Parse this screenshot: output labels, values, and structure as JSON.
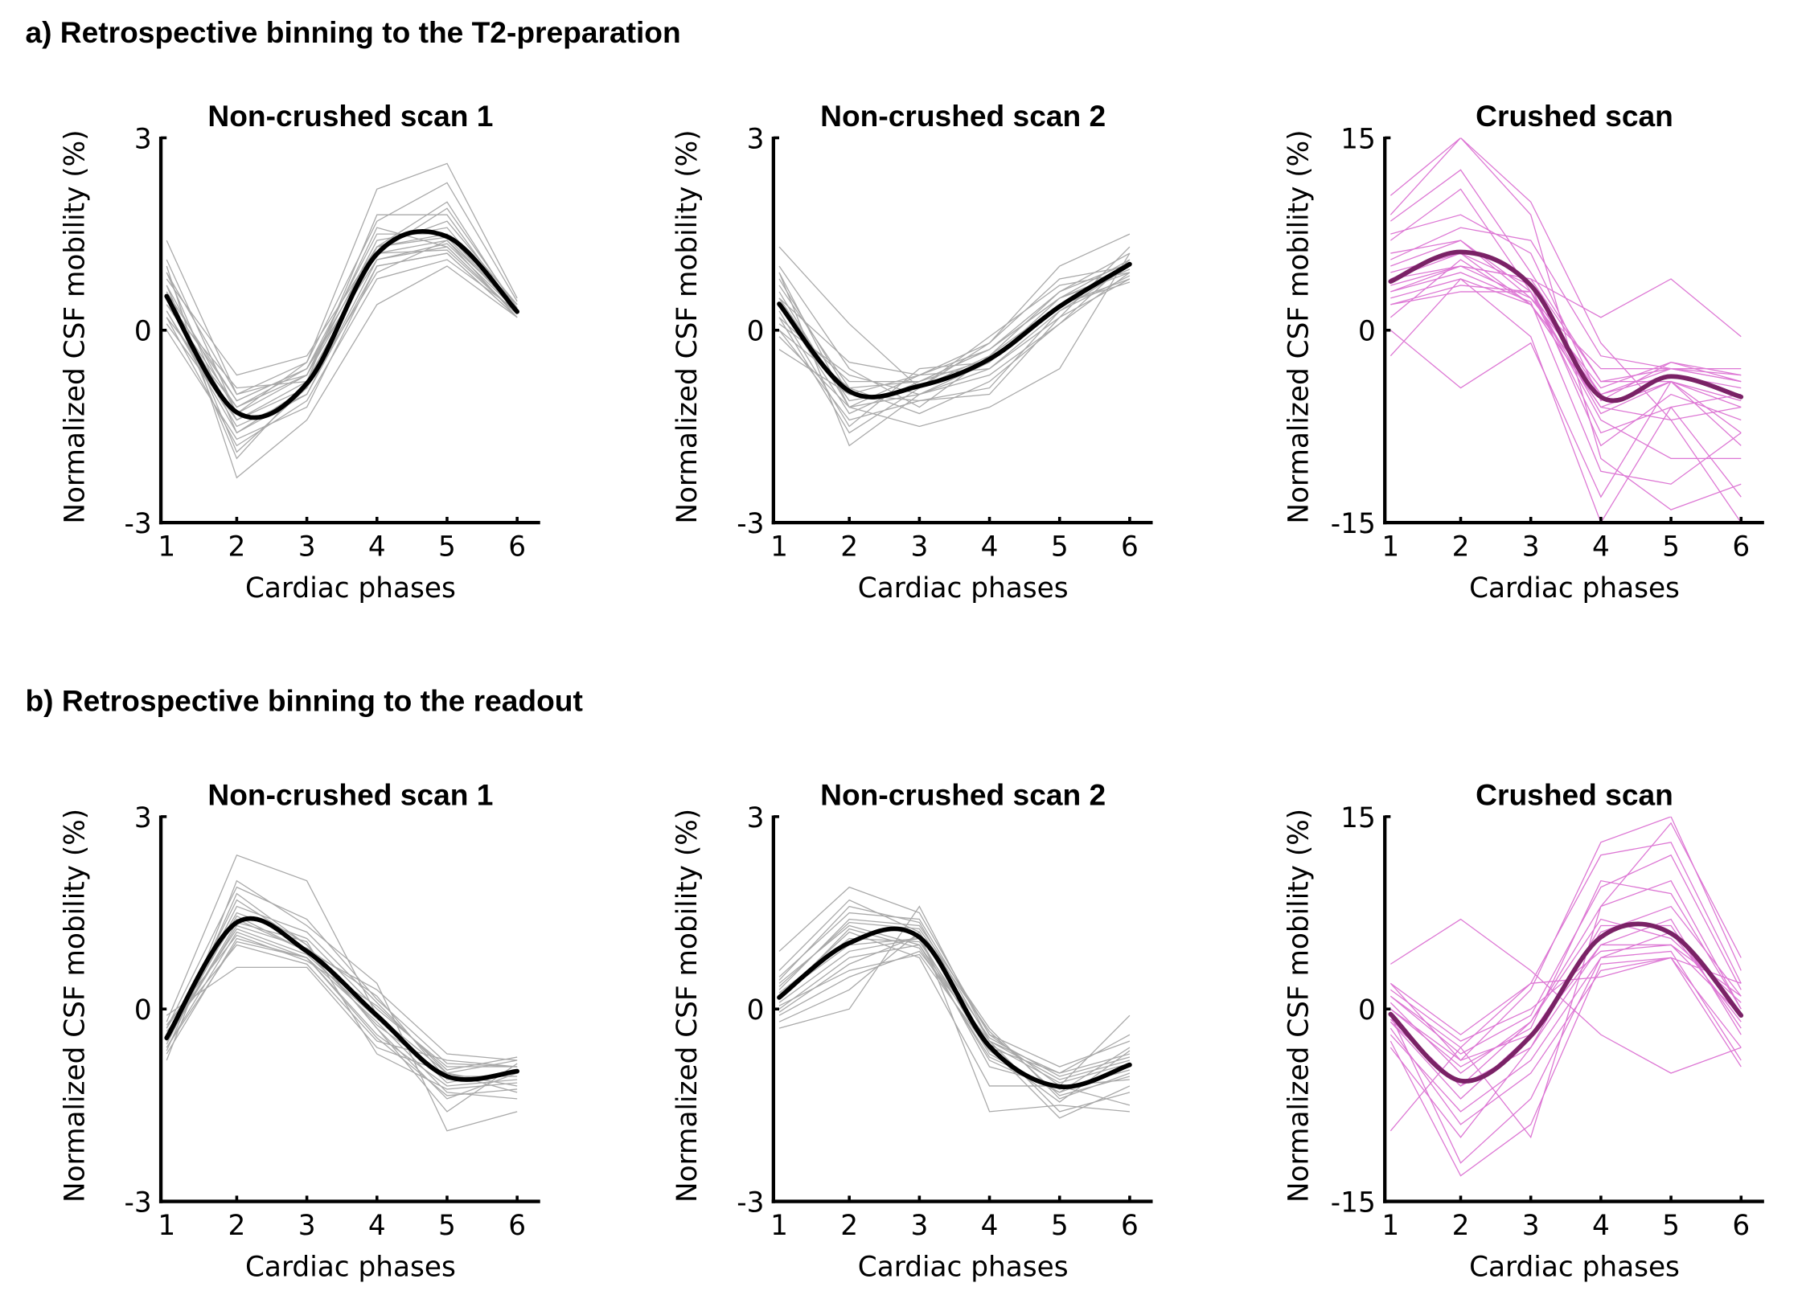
{
  "sections": [
    {
      "title": "a) Retrospective binning to the T2-preparation"
    },
    {
      "title": "b) Retrospective binning to the readout"
    }
  ],
  "colors": {
    "subject_gray": "#a9a9a9",
    "mean_black": "#000000",
    "subject_pink": "#dd77d4",
    "mean_purple": "#7a2266"
  },
  "chart_data": [
    {
      "type": "line",
      "section": 0,
      "title": "Non-crushed scan 1",
      "xlabel": "Cardiac phases",
      "ylabel": "Normalized CSF mobility (%)",
      "x": [
        1,
        2,
        3,
        4,
        5,
        6
      ],
      "xticks": [
        "1",
        "2",
        "3",
        "4",
        "5",
        "6"
      ],
      "ylim": [
        -3,
        3
      ],
      "yticks": [
        "-3",
        "0",
        "3"
      ],
      "grid": false,
      "style": "gray",
      "mean": [
        0.53,
        -1.28,
        -0.83,
        1.19,
        1.46,
        0.29
      ],
      "subjects": [
        [
          1.4,
          -1.0,
          -0.5,
          2.2,
          2.6,
          0.5
        ],
        [
          1.0,
          -2.3,
          -1.4,
          0.4,
          1.0,
          0.2
        ],
        [
          0.9,
          -1.6,
          -0.9,
          1.3,
          2.0,
          0.3
        ],
        [
          0.7,
          -1.3,
          -0.7,
          1.2,
          1.4,
          0.35
        ],
        [
          0.5,
          -1.1,
          -0.6,
          1.1,
          1.3,
          0.25
        ],
        [
          0.3,
          -1.5,
          -1.0,
          1.0,
          1.2,
          0.2
        ],
        [
          0.6,
          -2.0,
          -0.8,
          1.8,
          1.8,
          0.3
        ],
        [
          0.2,
          -1.8,
          -1.1,
          0.8,
          1.1,
          0.3
        ],
        [
          0.1,
          -1.4,
          -0.9,
          1.3,
          1.5,
          0.4
        ],
        [
          0.8,
          -0.7,
          -0.4,
          1.3,
          1.7,
          0.4
        ],
        [
          0.4,
          -1.2,
          -0.7,
          1.4,
          1.6,
          0.3
        ],
        [
          0.0,
          -1.7,
          -1.2,
          1.0,
          1.2,
          0.2
        ],
        [
          0.6,
          -1.1,
          -0.6,
          1.5,
          1.5,
          0.3
        ],
        [
          0.5,
          -1.4,
          -0.8,
          1.2,
          1.9,
          0.35
        ],
        [
          0.9,
          -1.0,
          -0.7,
          1.6,
          1.3,
          0.25
        ],
        [
          0.3,
          -1.6,
          -1.0,
          1.1,
          1.35,
          0.3
        ],
        [
          0.7,
          -1.9,
          -0.9,
          0.9,
          1.4,
          0.2
        ],
        [
          0.2,
          -1.2,
          -0.6,
          1.3,
          1.45,
          0.3
        ],
        [
          1.1,
          -1.3,
          -0.5,
          1.7,
          2.3,
          0.45
        ],
        [
          0.4,
          -0.9,
          -0.8,
          1.2,
          1.25,
          0.25
        ]
      ]
    },
    {
      "type": "line",
      "section": 0,
      "title": "Non-crushed scan 2",
      "xlabel": "Cardiac phases",
      "ylabel": "Normalized CSF mobility (%)",
      "x": [
        1,
        2,
        3,
        4,
        5,
        6
      ],
      "xticks": [
        "1",
        "2",
        "3",
        "4",
        "5",
        "6"
      ],
      "ylim": [
        -3,
        3
      ],
      "yticks": [
        "-3",
        "0",
        "3"
      ],
      "grid": false,
      "style": "gray",
      "mean": [
        0.41,
        -0.95,
        -0.87,
        -0.45,
        0.37,
        1.03
      ],
      "subjects": [
        [
          1.3,
          0.1,
          -0.9,
          -0.2,
          1.0,
          1.5
        ],
        [
          0.9,
          -1.8,
          -1.0,
          -0.5,
          0.5,
          1.1
        ],
        [
          0.6,
          -1.2,
          -1.5,
          -1.2,
          -0.6,
          1.2
        ],
        [
          0.2,
          -0.8,
          -0.8,
          -0.3,
          0.5,
          0.9
        ],
        [
          0.0,
          -1.4,
          -1.1,
          -0.9,
          0.3,
          1.0
        ],
        [
          -0.3,
          -1.0,
          -0.7,
          -0.6,
          0.2,
          0.8
        ],
        [
          1.0,
          -0.6,
          -1.2,
          -0.4,
          0.6,
          1.2
        ],
        [
          0.5,
          -1.1,
          -0.9,
          -0.1,
          0.7,
          0.9
        ],
        [
          0.3,
          -1.5,
          -0.6,
          -0.5,
          0.4,
          0.8
        ],
        [
          0.7,
          -0.9,
          -1.3,
          -0.8,
          0.1,
          1.1
        ],
        [
          0.4,
          -1.3,
          -0.8,
          -0.3,
          0.5,
          0.95
        ],
        [
          0.1,
          -0.7,
          -1.0,
          -0.6,
          0.3,
          0.85
        ],
        [
          -0.1,
          -1.2,
          -0.7,
          -0.2,
          0.8,
          1.0
        ],
        [
          0.8,
          -1.0,
          -1.1,
          -1.0,
          0.2,
          1.3
        ],
        [
          0.2,
          -1.6,
          -0.9,
          -0.4,
          0.4,
          0.75
        ],
        [
          0.5,
          -0.5,
          -0.7,
          -0.3,
          0.6,
          1.05
        ],
        [
          0.9,
          -1.2,
          -1.0,
          -0.7,
          0.1,
          0.9
        ],
        [
          0.0,
          -0.9,
          -0.8,
          -0.45,
          0.35,
          1.0
        ]
      ]
    },
    {
      "type": "line",
      "section": 0,
      "title": "Crushed scan",
      "xlabel": "Cardiac phases",
      "ylabel": "Normalized CSF mobility (%)",
      "x": [
        1,
        2,
        3,
        4,
        5,
        6
      ],
      "xticks": [
        "1",
        "2",
        "3",
        "4",
        "5",
        "6"
      ],
      "ylim": [
        -15,
        15
      ],
      "yticks": [
        "-15",
        "0",
        "15"
      ],
      "grid": false,
      "style": "pink",
      "mean": [
        3.8,
        6.1,
        3.5,
        -5.2,
        -3.6,
        -5.2
      ],
      "subjects": [
        [
          10.5,
          15,
          10,
          -1,
          -7,
          -15
        ],
        [
          8.5,
          12.5,
          4.5,
          -4,
          -4,
          -8
        ],
        [
          7,
          11,
          3,
          -8,
          -6,
          -5
        ],
        [
          5.5,
          8,
          7,
          -2,
          -3,
          -4
        ],
        [
          4,
          6,
          2,
          -5,
          -3.5,
          -4.5
        ],
        [
          3,
          5,
          2.5,
          -4.5,
          -2.5,
          -3.5
        ],
        [
          2.5,
          4,
          2,
          -6,
          -4,
          -6
        ],
        [
          2,
          3,
          3,
          -5,
          -3,
          -3
        ],
        [
          6,
          7,
          3,
          -7,
          -10,
          -10
        ],
        [
          3.5,
          5,
          4,
          1,
          4,
          -0.5
        ],
        [
          0,
          -4.5,
          -1,
          -13,
          -4,
          -9
        ],
        [
          -2,
          4,
          -0.5,
          -15,
          -6,
          -13
        ],
        [
          4.5,
          6,
          3.5,
          -9,
          -5,
          -7
        ],
        [
          1,
          5.5,
          2,
          -6,
          -7,
          -6
        ],
        [
          5,
          7,
          2.5,
          -3,
          -3,
          -4
        ],
        [
          3,
          4.5,
          2.2,
          -11,
          -12,
          -8
        ],
        [
          7.5,
          9,
          6,
          -5.5,
          -2.5,
          -4
        ],
        [
          2,
          3.5,
          3,
          -6.5,
          -4,
          -5.5
        ],
        [
          9,
          15,
          9,
          -10,
          -14,
          -12
        ],
        [
          4,
          5,
          4,
          -4,
          -3,
          -3.5
        ]
      ]
    },
    {
      "type": "line",
      "section": 1,
      "title": "Non-crushed scan 1",
      "xlabel": "Cardiac phases",
      "ylabel": "Normalized CSF mobility (%)",
      "x": [
        1,
        2,
        3,
        4,
        5,
        6
      ],
      "xticks": [
        "1",
        "2",
        "3",
        "4",
        "5",
        "6"
      ],
      "ylim": [
        -3,
        3
      ],
      "yticks": [
        "-3",
        "0",
        "3"
      ],
      "grid": false,
      "style": "gray",
      "mean": [
        -0.45,
        1.35,
        0.9,
        -0.1,
        -1.05,
        -0.97
      ],
      "subjects": [
        [
          -0.2,
          2.4,
          2.0,
          -0.1,
          -1.0,
          -1.3
        ],
        [
          -0.8,
          2.0,
          1.3,
          0.4,
          -1.9,
          -1.6
        ],
        [
          -0.5,
          1.7,
          1.0,
          -0.3,
          -1.4,
          -1.0
        ],
        [
          -0.3,
          1.4,
          0.9,
          0.3,
          -0.7,
          -0.8
        ],
        [
          -0.6,
          1.2,
          0.8,
          -0.4,
          -1.2,
          -1.1
        ],
        [
          -0.4,
          1.5,
          1.1,
          0.0,
          -0.9,
          -0.9
        ],
        [
          -0.1,
          0.65,
          0.65,
          -0.6,
          -1.0,
          -0.8
        ],
        [
          -0.7,
          1.1,
          0.8,
          -0.2,
          -1.3,
          -1.4
        ],
        [
          -0.5,
          1.3,
          0.95,
          0.2,
          -1.1,
          -1.0
        ],
        [
          -0.35,
          1.0,
          0.7,
          -0.5,
          -0.8,
          -0.9
        ],
        [
          -0.55,
          1.6,
          1.2,
          0.1,
          -1.0,
          -1.2
        ],
        [
          -0.4,
          1.25,
          0.85,
          -0.15,
          -1.15,
          -0.95
        ],
        [
          -0.65,
          1.8,
          1.0,
          -0.3,
          -1.6,
          -0.85
        ],
        [
          -0.25,
          1.15,
          0.75,
          0.05,
          -0.95,
          -0.75
        ],
        [
          -0.45,
          1.45,
          0.9,
          -0.25,
          -1.05,
          -1.05
        ],
        [
          -0.5,
          1.35,
          1.05,
          -0.7,
          -1.25,
          -1.15
        ],
        [
          -0.3,
          1.9,
          1.4,
          0.15,
          -0.85,
          -0.9
        ],
        [
          -0.6,
          1.05,
          0.8,
          -0.45,
          -1.35,
          -1.25
        ]
      ]
    },
    {
      "type": "line",
      "section": 1,
      "title": "Non-crushed scan 2",
      "xlabel": "Cardiac phases",
      "ylabel": "Normalized CSF mobility (%)",
      "x": [
        1,
        2,
        3,
        4,
        5,
        6
      ],
      "xticks": [
        "1",
        "2",
        "3",
        "4",
        "5",
        "6"
      ],
      "ylim": [
        -3,
        3
      ],
      "yticks": [
        "-3",
        "0",
        "3"
      ],
      "grid": false,
      "style": "gray",
      "mean": [
        0.18,
        1.03,
        1.12,
        -0.58,
        -1.21,
        -0.87
      ],
      "subjects": [
        [
          0.9,
          1.9,
          1.5,
          -0.4,
          -1.2,
          -0.1
        ],
        [
          0.6,
          1.7,
          1.2,
          -1.6,
          -1.5,
          -1.6
        ],
        [
          -0.3,
          0.0,
          1.6,
          -0.5,
          -1.6,
          -1.3
        ],
        [
          0.4,
          1.3,
          1.0,
          -0.6,
          -1.0,
          -0.7
        ],
        [
          0.1,
          0.9,
          1.1,
          -0.7,
          -1.3,
          -0.9
        ],
        [
          -0.1,
          0.5,
          0.9,
          -0.5,
          -1.1,
          -0.8
        ],
        [
          0.3,
          1.4,
          1.3,
          -0.3,
          -1.4,
          -1.0
        ],
        [
          0.2,
          1.2,
          0.8,
          -1.2,
          -1.2,
          -1.1
        ],
        [
          0.0,
          0.8,
          1.0,
          -0.8,
          -1.3,
          -0.6
        ],
        [
          -0.2,
          0.3,
          1.2,
          -0.6,
          -1.7,
          -1.2
        ],
        [
          0.5,
          1.5,
          1.4,
          -0.4,
          -0.9,
          -0.5
        ],
        [
          0.25,
          1.1,
          1.05,
          -0.55,
          -1.15,
          -0.85
        ],
        [
          0.15,
          1.25,
          0.95,
          -0.75,
          -1.25,
          -0.95
        ],
        [
          -0.05,
          0.7,
          1.15,
          -0.45,
          -1.05,
          -0.75
        ],
        [
          0.35,
          1.35,
          1.25,
          -0.35,
          -1.35,
          -1.05
        ],
        [
          0.05,
          0.6,
          0.85,
          -0.65,
          -1.45,
          -0.65
        ],
        [
          0.45,
          1.6,
          1.35,
          -0.5,
          -1.0,
          -0.4
        ],
        [
          0.2,
          1.0,
          1.1,
          -0.9,
          -1.2,
          -1.5
        ]
      ]
    },
    {
      "type": "line",
      "section": 1,
      "title": "Crushed scan",
      "xlabel": "Cardiac phases",
      "ylabel": "Normalized CSF mobility (%)",
      "x": [
        1,
        2,
        3,
        4,
        5,
        6
      ],
      "xticks": [
        "1",
        "2",
        "3",
        "4",
        "5",
        "6"
      ],
      "ylim": [
        -15,
        15
      ],
      "yticks": [
        "-15",
        "0",
        "15"
      ],
      "grid": false,
      "style": "pink",
      "mean": [
        -0.4,
        -5.6,
        -2.1,
        5.6,
        5.9,
        -0.5
      ],
      "subjects": [
        [
          3.5,
          7,
          3,
          -2,
          -5,
          -3
        ],
        [
          -9.5,
          -3,
          -10,
          8,
          14.5,
          4
        ],
        [
          2,
          -4,
          1.5,
          13,
          15,
          3
        ],
        [
          1,
          -3,
          2,
          12,
          13,
          2
        ],
        [
          -1,
          -6,
          -1,
          8,
          10,
          0
        ],
        [
          0,
          -4,
          -2,
          6,
          8,
          1
        ],
        [
          -2,
          -8,
          -4,
          4,
          6,
          -1
        ],
        [
          -3,
          -10,
          -3,
          5,
          7,
          -2
        ],
        [
          1.5,
          -2.5,
          0,
          4.5,
          5,
          1
        ],
        [
          -1.5,
          -9,
          -5,
          3,
          4,
          -3
        ],
        [
          0.5,
          -5,
          -1,
          7,
          5.5,
          0.5
        ],
        [
          -0.5,
          -12,
          -7,
          4,
          4.5,
          -4
        ],
        [
          -2.5,
          -13,
          -9,
          3.5,
          4,
          -4.5
        ],
        [
          1,
          -3.5,
          -0.5,
          9.5,
          12,
          1.5
        ],
        [
          -1,
          -7,
          -2,
          5,
          5,
          -0.5
        ],
        [
          -0.8,
          -6,
          -3,
          6.5,
          6.5,
          -1.5
        ],
        [
          2,
          -2,
          2,
          2.5,
          4,
          2
        ],
        [
          0,
          -4.5,
          -1.5,
          10,
          9,
          0
        ]
      ]
    }
  ]
}
